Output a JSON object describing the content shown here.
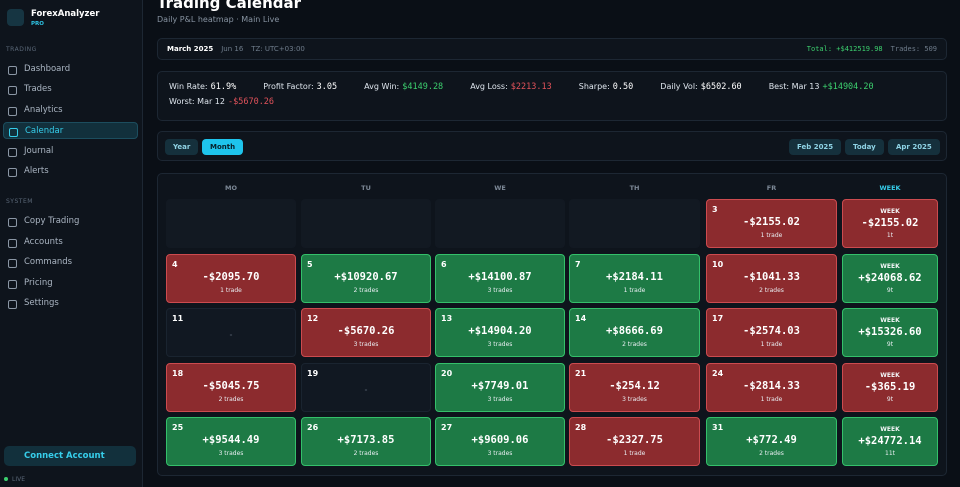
{
  "sidebar": {
    "brand": "ForexAnalyzer",
    "badge": "PRO",
    "sections": [
      {
        "title": "TRADING",
        "items": [
          "Dashboard",
          "Trades",
          "Analytics",
          "Calendar",
          "Journal",
          "Alerts"
        ]
      },
      {
        "title": "SYSTEM",
        "items": [
          "Copy Trading",
          "Accounts",
          "Commands",
          "Pricing",
          "Settings"
        ]
      }
    ],
    "active": "Calendar",
    "connect": "Connect Account",
    "status": "LIVE"
  },
  "header": {
    "title": "Trading Calendar",
    "subtitle": "Daily P&L heatmap · Main Live"
  },
  "infobar": {
    "month": "March 2025",
    "date": "Jun 16",
    "tz": "TZ: UTC+03:00",
    "total": "Total: +$412519.98",
    "trades": "Trades: 509"
  },
  "stats": [
    {
      "label": "Win Rate:",
      "value": "61.9%"
    },
    {
      "label": "Profit Factor:",
      "value": "3.05"
    },
    {
      "label": "Avg Win:",
      "value": "$4149.28",
      "color": "#3ccf6e"
    },
    {
      "label": "Avg Loss:",
      "value": "$2213.13",
      "color": "#e0525a"
    },
    {
      "label": "Sharpe:",
      "value": "0.50"
    },
    {
      "label": "Daily Vol:",
      "value": "$6502.60"
    },
    {
      "label": "Best: Mar 13",
      "value": "+$14904.20",
      "color": "#3ccf6e"
    },
    {
      "label": "Worst: Mar 12",
      "value": "-$5670.26",
      "color": "#e0525a"
    }
  ],
  "controls": {
    "views": [
      "Year",
      "Month"
    ],
    "active": "Month",
    "nav": [
      "Feb 2025",
      "Today",
      "Apr 2025"
    ]
  },
  "calendar": {
    "weekdays": [
      "MO",
      "TU",
      "WE",
      "TH",
      "FR",
      "WEEK"
    ],
    "weeks": [
      {
        "days": [
          null,
          null,
          null,
          null,
          {
            "day": "3",
            "pnl": "-$2155.02",
            "trades": "1 trade"
          }
        ],
        "week": {
          "label": "WEEK",
          "pnl": "-$2155.02",
          "trades": "1t"
        }
      },
      {
        "days": [
          {
            "day": "4",
            "pnl": "-$2095.70",
            "trades": "1 trade"
          },
          {
            "day": "5",
            "pnl": "+$10920.67",
            "trades": "2 trades"
          },
          {
            "day": "6",
            "pnl": "+$14100.87",
            "trades": "3 trades"
          },
          {
            "day": "7",
            "pnl": "+$2184.11",
            "trades": "1 trade"
          },
          {
            "day": "10",
            "pnl": "-$1041.33",
            "trades": "2 trades"
          }
        ],
        "week": {
          "label": "WEEK",
          "pnl": "+$24068.62",
          "trades": "9t"
        }
      },
      {
        "days": [
          {
            "day": "11",
            "pnl": "-"
          },
          {
            "day": "12",
            "pnl": "-$5670.26",
            "trades": "3 trades"
          },
          {
            "day": "13",
            "pnl": "+$14904.20",
            "trades": "3 trades"
          },
          {
            "day": "14",
            "pnl": "+$8666.69",
            "trades": "2 trades"
          },
          {
            "day": "17",
            "pnl": "-$2574.03",
            "trades": "1 trade"
          }
        ],
        "week": {
          "label": "WEEK",
          "pnl": "+$15326.60",
          "trades": "9t"
        }
      },
      {
        "days": [
          {
            "day": "18",
            "pnl": "-$5045.75",
            "trades": "2 trades"
          },
          {
            "day": "19",
            "pnl": "-"
          },
          {
            "day": "20",
            "pnl": "+$7749.01",
            "trades": "3 trades"
          },
          {
            "day": "21",
            "pnl": "-$254.12",
            "trades": "3 trades"
          },
          {
            "day": "24",
            "pnl": "-$2814.33",
            "trades": "1 trade"
          }
        ],
        "week": {
          "label": "WEEK",
          "pnl": "-$365.19",
          "trades": "9t"
        }
      },
      {
        "days": [
          {
            "day": "25",
            "pnl": "+$9544.49",
            "trades": "3 trades"
          },
          {
            "day": "26",
            "pnl": "+$7173.85",
            "trades": "2 trades"
          },
          {
            "day": "27",
            "pnl": "+$9609.06",
            "trades": "3 trades"
          },
          {
            "day": "28",
            "pnl": "-$2327.75",
            "trades": "1 trade"
          },
          {
            "day": "31",
            "pnl": "+$772.49",
            "trades": "2 trades"
          }
        ],
        "week": {
          "label": "WEEK",
          "pnl": "+$24772.14",
          "trades": "11t"
        }
      }
    ]
  }
}
